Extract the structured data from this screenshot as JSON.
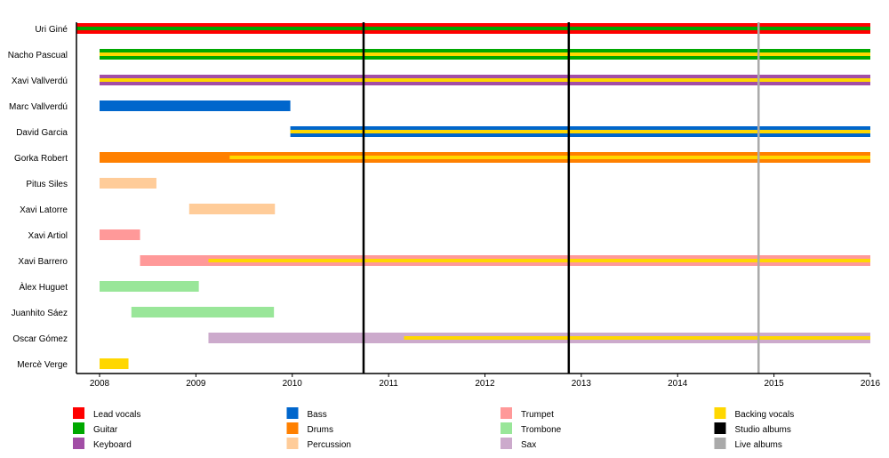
{
  "chart_data": {
    "type": "timeline",
    "xlim": [
      2007.76,
      2016
    ],
    "x_ticks": [
      "2008",
      "2009",
      "2010",
      "2011",
      "2012",
      "2013",
      "2014",
      "2015",
      "2016"
    ],
    "roles": {
      "Lead vocals": "#ff0000",
      "Guitar": "#00a800",
      "Keyboard": "#a24ea6",
      "Bass": "#0066cc",
      "Drums": "#ff8000",
      "Percussion": "#ffcc99",
      "Trumpet": "#ff9999",
      "Trombone": "#99e699",
      "Sax": "#ccaacc",
      "Backing vocals": "#ffd700",
      "Studio albums": "#000000",
      "Live albums": "#aaaaaa"
    },
    "legend": [
      "Lead vocals",
      "Guitar",
      "Keyboard",
      "Bass",
      "Drums",
      "Percussion",
      "Trumpet",
      "Trombone",
      "Sax",
      "Backing vocals",
      "Studio albums",
      "Live albums"
    ],
    "members": [
      {
        "name": "Uri Giné",
        "bars": [
          {
            "role": "Lead vocals",
            "start": 2007.76,
            "end": 2016
          }
        ],
        "stripes": [
          {
            "role": "Guitar",
            "start": 2007.76,
            "end": 2016
          }
        ]
      },
      {
        "name": "Nacho Pascual",
        "bars": [
          {
            "role": "Guitar",
            "start": 2008,
            "end": 2016
          }
        ],
        "stripes": [
          {
            "role": "Backing vocals",
            "start": 2008,
            "end": 2016
          }
        ]
      },
      {
        "name": "Xavi Vallverdú",
        "bars": [
          {
            "role": "Keyboard",
            "start": 2008,
            "end": 2016
          }
        ],
        "stripes": [
          {
            "role": "Backing vocals",
            "start": 2008,
            "end": 2016
          }
        ]
      },
      {
        "name": "Marc Vallverdú",
        "bars": [
          {
            "role": "Bass",
            "start": 2008,
            "end": 2009.98
          }
        ],
        "stripes": []
      },
      {
        "name": "David Garcia",
        "bars": [
          {
            "role": "Bass",
            "start": 2009.98,
            "end": 2016
          }
        ],
        "stripes": [
          {
            "role": "Backing vocals",
            "start": 2009.98,
            "end": 2016
          }
        ]
      },
      {
        "name": "Gorka Robert",
        "bars": [
          {
            "role": "Drums",
            "start": 2008,
            "end": 2016
          }
        ],
        "stripes": [
          {
            "role": "Backing vocals",
            "start": 2009.35,
            "end": 2016
          }
        ]
      },
      {
        "name": "Pitus Siles",
        "bars": [
          {
            "role": "Percussion",
            "start": 2008,
            "end": 2008.59
          }
        ],
        "stripes": []
      },
      {
        "name": "Xavi Latorre",
        "bars": [
          {
            "role": "Percussion",
            "start": 2008.93,
            "end": 2009.82
          }
        ],
        "stripes": []
      },
      {
        "name": "Xavi Artiol",
        "bars": [
          {
            "role": "Trumpet",
            "start": 2008,
            "end": 2008.42
          }
        ],
        "stripes": []
      },
      {
        "name": "Xavi Barrero",
        "bars": [
          {
            "role": "Trumpet",
            "start": 2008.42,
            "end": 2016
          }
        ],
        "stripes": [
          {
            "role": "Backing vocals",
            "start": 2009.13,
            "end": 2016
          }
        ]
      },
      {
        "name": "Àlex Huguet",
        "bars": [
          {
            "role": "Trombone",
            "start": 2008,
            "end": 2009.03
          }
        ],
        "stripes": []
      },
      {
        "name": "Juanhito Sáez",
        "bars": [
          {
            "role": "Trombone",
            "start": 2008.33,
            "end": 2009.81
          }
        ],
        "stripes": []
      },
      {
        "name": "Oscar Gómez",
        "bars": [
          {
            "role": "Sax",
            "start": 2009.13,
            "end": 2016
          }
        ],
        "stripes": [
          {
            "role": "Backing vocals",
            "start": 2011.16,
            "end": 2016
          }
        ]
      },
      {
        "name": "Mercè Verge",
        "bars": [
          {
            "role": "Backing vocals",
            "start": 2008,
            "end": 2008.3
          }
        ],
        "stripes": []
      }
    ],
    "events": [
      {
        "type": "Studio albums",
        "date": 2010.74
      },
      {
        "type": "Studio albums",
        "date": 2012.87
      },
      {
        "type": "Live albums",
        "date": 2014.84
      }
    ]
  }
}
